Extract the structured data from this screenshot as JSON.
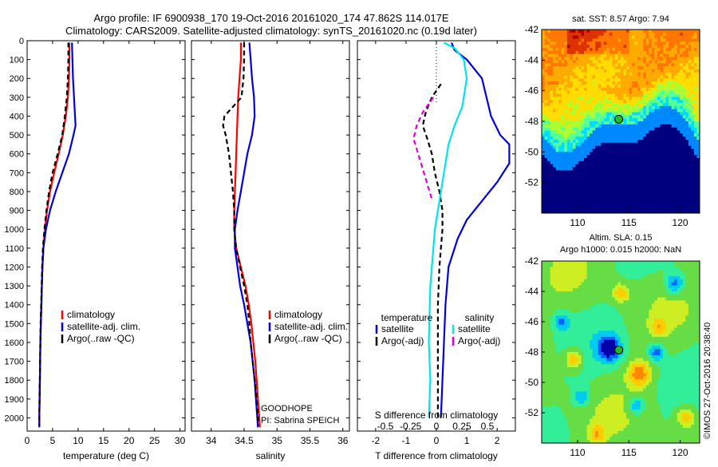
{
  "header": {
    "title_line1": "Argo profile: IF 6900938_170 19-Oct-2016 20161020_174 47.862S 114.017E",
    "title_line2": "Climatology: CARS2009. Satellite-adjusted climatology: synTS_20161020.nc (0.19d later)"
  },
  "side_label": "©IMOS 27-Oct-2016 20:38:40",
  "colors": {
    "climatology": "#ff0000",
    "satellite": "#0000dd",
    "argo": "#000000",
    "satellite_diff": "#00e5e5",
    "argo_diff": "#dd00dd"
  },
  "chart_data": [
    {
      "type": "line",
      "xlabel": "temperature (deg C)",
      "xlim": [
        0,
        31
      ],
      "xticks": [
        0,
        5,
        10,
        15,
        20,
        25,
        30
      ],
      "ylim": [
        2070,
        0
      ],
      "yticks": [
        0,
        100,
        200,
        300,
        400,
        500,
        600,
        700,
        800,
        900,
        1000,
        1100,
        1200,
        1300,
        1400,
        1500,
        1600,
        1700,
        1800,
        1900,
        2000
      ],
      "legend": [
        "climatology",
        "satellite-adj. clim.",
        "Argo(..raw -QC)"
      ],
      "series": [
        {
          "name": "climatology",
          "color": "#ff0000",
          "dash": "",
          "points": [
            [
              8.3,
              10
            ],
            [
              8.3,
              100
            ],
            [
              8.2,
              200
            ],
            [
              8.0,
              300
            ],
            [
              7.6,
              400
            ],
            [
              7.0,
              500
            ],
            [
              6.2,
              600
            ],
            [
              5.3,
              700
            ],
            [
              4.5,
              800
            ],
            [
              3.9,
              900
            ],
            [
              3.5,
              1000
            ],
            [
              3.2,
              1100
            ],
            [
              3.0,
              1200
            ],
            [
              2.9,
              1300
            ],
            [
              2.8,
              1400
            ],
            [
              2.7,
              1500
            ],
            [
              2.6,
              1600
            ],
            [
              2.55,
              1700
            ],
            [
              2.5,
              1800
            ],
            [
              2.45,
              1900
            ],
            [
              2.4,
              2000
            ],
            [
              2.4,
              2050
            ]
          ]
        },
        {
          "name": "satellite-adj. clim.",
          "color": "#0000dd",
          "dash": "",
          "points": [
            [
              8.8,
              10
            ],
            [
              8.9,
              100
            ],
            [
              9.0,
              200
            ],
            [
              9.2,
              300
            ],
            [
              9.4,
              400
            ],
            [
              9.5,
              450
            ],
            [
              9.1,
              500
            ],
            [
              8.2,
              600
            ],
            [
              6.9,
              700
            ],
            [
              5.6,
              800
            ],
            [
              4.5,
              900
            ],
            [
              3.7,
              1000
            ],
            [
              3.2,
              1100
            ],
            [
              3.0,
              1200
            ],
            [
              2.9,
              1300
            ],
            [
              2.8,
              1400
            ],
            [
              2.7,
              1500
            ],
            [
              2.6,
              1600
            ],
            [
              2.55,
              1700
            ],
            [
              2.5,
              1800
            ],
            [
              2.45,
              1900
            ],
            [
              2.4,
              2000
            ],
            [
              2.4,
              2050
            ]
          ]
        },
        {
          "name": "Argo(..raw -QC)",
          "color": "#000000",
          "dash": "6,4",
          "points": [
            [
              8.1,
              10
            ],
            [
              8.1,
              100
            ],
            [
              8.0,
              200
            ],
            [
              7.8,
              300
            ],
            [
              7.4,
              400
            ],
            [
              6.9,
              500
            ],
            [
              6.0,
              600
            ],
            [
              5.0,
              700
            ],
            [
              4.3,
              800
            ],
            [
              3.8,
              900
            ],
            [
              3.4,
              1000
            ],
            [
              3.1,
              1100
            ],
            [
              2.95,
              1200
            ],
            [
              2.85,
              1300
            ],
            [
              2.75,
              1400
            ],
            [
              2.65,
              1500
            ],
            [
              2.6,
              1600
            ],
            [
              2.55,
              1700
            ],
            [
              2.5,
              1800
            ],
            [
              2.45,
              1900
            ],
            [
              2.4,
              2000
            ],
            [
              2.4,
              2040
            ]
          ]
        }
      ]
    },
    {
      "type": "line",
      "xlabel": "salinity",
      "xlim": [
        33.7,
        36.1
      ],
      "xticks": [
        34,
        34.5,
        35,
        35.5,
        36
      ],
      "xtick_labels": [
        "34",
        "34.5",
        "35",
        "35.5",
        "36"
      ],
      "ylim": [
        2070,
        0
      ],
      "legend": [
        "climatology",
        "satellite-adj. clim.",
        "Argo(..raw -QC)"
      ],
      "notes": [
        "GOODHOPE",
        "PI: Sabrina SPEICH"
      ],
      "series": [
        {
          "name": "climatology",
          "color": "#ff0000",
          "dash": "",
          "points": [
            [
              34.45,
              10
            ],
            [
              34.45,
              100
            ],
            [
              34.43,
              200
            ],
            [
              34.41,
              300
            ],
            [
              34.4,
              400
            ],
            [
              34.39,
              500
            ],
            [
              34.38,
              600
            ],
            [
              34.37,
              700
            ],
            [
              34.36,
              800
            ],
            [
              34.35,
              900
            ],
            [
              34.35,
              1000
            ],
            [
              34.38,
              1100
            ],
            [
              34.45,
              1200
            ],
            [
              34.52,
              1300
            ],
            [
              34.57,
              1400
            ],
            [
              34.61,
              1500
            ],
            [
              34.64,
              1600
            ],
            [
              34.67,
              1700
            ],
            [
              34.69,
              1800
            ],
            [
              34.71,
              1900
            ],
            [
              34.73,
              2000
            ],
            [
              34.74,
              2050
            ]
          ]
        },
        {
          "name": "satellite-adj. clim.",
          "color": "#0000dd",
          "dash": "",
          "points": [
            [
              34.58,
              10
            ],
            [
              34.6,
              100
            ],
            [
              34.62,
              200
            ],
            [
              34.65,
              300
            ],
            [
              34.66,
              400
            ],
            [
              34.62,
              500
            ],
            [
              34.55,
              600
            ],
            [
              34.5,
              700
            ],
            [
              34.45,
              800
            ],
            [
              34.4,
              900
            ],
            [
              34.36,
              1000
            ],
            [
              34.36,
              1100
            ],
            [
              34.4,
              1200
            ],
            [
              34.44,
              1300
            ],
            [
              34.5,
              1400
            ],
            [
              34.55,
              1500
            ],
            [
              34.6,
              1600
            ],
            [
              34.63,
              1700
            ],
            [
              34.66,
              1800
            ],
            [
              34.68,
              1900
            ],
            [
              34.7,
              2000
            ],
            [
              34.71,
              2050
            ]
          ]
        },
        {
          "name": "Argo(..raw -QC)",
          "color": "#000000",
          "dash": "6,4",
          "points": [
            [
              34.5,
              10
            ],
            [
              34.5,
              100
            ],
            [
              34.49,
              200
            ],
            [
              34.46,
              300
            ],
            [
              34.33,
              350
            ],
            [
              34.2,
              400
            ],
            [
              34.18,
              450
            ],
            [
              34.22,
              500
            ],
            [
              34.27,
              600
            ],
            [
              34.3,
              700
            ],
            [
              34.33,
              800
            ],
            [
              34.35,
              900
            ],
            [
              34.35,
              1000
            ],
            [
              34.38,
              1100
            ],
            [
              34.44,
              1200
            ],
            [
              34.5,
              1300
            ],
            [
              34.55,
              1400
            ],
            [
              34.58,
              1500
            ],
            [
              34.6,
              1600
            ],
            [
              34.63,
              1700
            ],
            [
              34.66,
              1800
            ],
            [
              34.69,
              1900
            ],
            [
              34.71,
              2000
            ],
            [
              34.72,
              2040
            ]
          ]
        }
      ]
    },
    {
      "type": "line",
      "xlabel": "T difference from climatology",
      "xlabel_top": "S difference from climatology",
      "xlim": [
        -2.6,
        2.6
      ],
      "xticks": [
        -2,
        -1,
        0,
        1,
        2
      ],
      "top_ticks": [
        {
          "x": -1.68,
          "label": "-0.5"
        },
        {
          "x": -0.85,
          "label": "-0.25"
        },
        {
          "x": 0,
          "label": "0"
        },
        {
          "x": 0.84,
          "label": "0.25"
        },
        {
          "x": 1.68,
          "label": "0.5"
        }
      ],
      "ylim": [
        2070,
        0
      ],
      "legend_left_title": "temperature",
      "legend_right_title": "salinity",
      "legend": [
        "satellite",
        "Argo(-adj)",
        "satellite",
        "Argo(-adj)"
      ],
      "series": [
        {
          "name": "temperature satellite",
          "color": "#0000dd",
          "dash": "",
          "points": [
            [
              0.5,
              10
            ],
            [
              0.6,
              50
            ],
            [
              1.0,
              100
            ],
            [
              1.5,
              200
            ],
            [
              1.8,
              400
            ],
            [
              2.1,
              500
            ],
            [
              2.4,
              550
            ],
            [
              2.4,
              650
            ],
            [
              2.0,
              750
            ],
            [
              1.5,
              850
            ],
            [
              1.0,
              950
            ],
            [
              0.7,
              1050
            ],
            [
              0.4,
              1200
            ],
            [
              0.3,
              1400
            ],
            [
              0.25,
              1600
            ],
            [
              0.2,
              1800
            ],
            [
              0.15,
              2000
            ]
          ]
        },
        {
          "name": "temperature Argo(-adj)",
          "color": "#000000",
          "dash": "6,4",
          "points": [
            [
              0.15,
              230
            ],
            [
              -0.15,
              300
            ],
            [
              -0.35,
              380
            ],
            [
              -0.45,
              450
            ],
            [
              -0.3,
              520
            ],
            [
              -0.15,
              600
            ],
            [
              -0.05,
              700
            ],
            [
              0.1,
              800
            ],
            [
              0.2,
              900
            ],
            [
              0.2,
              1000
            ],
            [
              0.15,
              1100
            ],
            [
              0.1,
              1200
            ],
            [
              0.05,
              1400
            ],
            [
              0.05,
              1600
            ],
            [
              0.05,
              1800
            ],
            [
              0.05,
              2000
            ]
          ]
        },
        {
          "name": "salinity satellite",
          "color": "#00e5e5",
          "dash": "",
          "points": [
            [
              0.25,
              10
            ],
            [
              0.6,
              40
            ],
            [
              0.9,
              100
            ],
            [
              1.0,
              200
            ],
            [
              0.85,
              350
            ],
            [
              0.6,
              450
            ],
            [
              0.4,
              550
            ],
            [
              0.3,
              650
            ],
            [
              0.15,
              800
            ],
            [
              -0.05,
              1000
            ],
            [
              -0.1,
              1100
            ],
            [
              -0.2,
              1300
            ],
            [
              -0.25,
              1600
            ],
            [
              -0.2,
              1800
            ],
            [
              -0.25,
              2000
            ]
          ]
        },
        {
          "name": "salinity Argo(-adj)",
          "color": "#dd00dd",
          "dash": "6,4",
          "points": [
            [
              -0.1,
              300
            ],
            [
              -0.45,
              380
            ],
            [
              -0.65,
              450
            ],
            [
              -0.75,
              520
            ],
            [
              -0.6,
              600
            ],
            [
              -0.45,
              680
            ],
            [
              -0.3,
              760
            ],
            [
              -0.15,
              840
            ]
          ]
        }
      ]
    },
    {
      "type": "heatmap",
      "title": "sat. SST: 8.57 Argo: 7.94",
      "xlim": [
        106.5,
        121.9
      ],
      "ylim": [
        -54,
        -42
      ],
      "xticks": [
        110,
        115,
        120
      ],
      "yticks": [
        -42,
        -44,
        -46,
        -48,
        -50,
        -52
      ],
      "marker": {
        "lon": 114.017,
        "lat": -47.862
      },
      "colormap": [
        "#00007f",
        "#0000ff",
        "#0088ff",
        "#00ddff",
        "#55ff99",
        "#aaff33",
        "#ffdd00",
        "#ffaa00",
        "#ff7700",
        "#dd3300",
        "#aa0000"
      ]
    },
    {
      "type": "heatmap",
      "title": "Altim. SLA: 0.15",
      "subtitle": "Argo h1000: 0.015 h2000: NaN",
      "xlim": [
        106.5,
        121.9
      ],
      "ylim": [
        -54,
        -42
      ],
      "xticks": [
        110,
        115,
        120
      ],
      "yticks": [
        -42,
        -44,
        -46,
        -48,
        -50,
        -52
      ],
      "marker": {
        "lon": 114.017,
        "lat": -47.862
      },
      "colormap": [
        "#0000aa",
        "#0066ff",
        "#00ccee",
        "#33ee99",
        "#66dd44",
        "#ccee22",
        "#ffcc00",
        "#ff8800",
        "#ff3300",
        "#cc0000"
      ]
    }
  ]
}
